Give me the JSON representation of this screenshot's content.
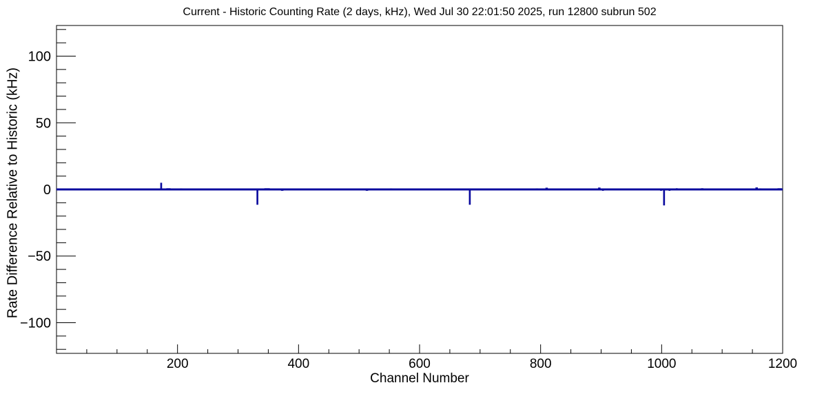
{
  "page": {
    "background": "#ffffff"
  },
  "chart_data": {
    "type": "line",
    "title": "Current - Historic Counting Rate (2 days, kHz), Wed Jul 30 22:01:50 2025, run 12800 subrun 502",
    "xlabel": "Channel Number",
    "ylabel": "Rate Difference Relative to Historic (kHz)",
    "xlim": [
      0,
      1200
    ],
    "ylim": [
      -123,
      123
    ],
    "x_major_ticks": [
      200,
      400,
      600,
      800,
      1000,
      1200
    ],
    "x_minor_tick_step": 50,
    "y_major_ticks": [
      -100,
      -50,
      0,
      50,
      100
    ],
    "y_minor_tick_step": 10,
    "grid": false,
    "legend_position": "none",
    "axis_color": "#000000",
    "line_color": "#0a0a9e",
    "baseline_value": 0,
    "series": [
      {
        "name": "rate_difference_vs_channel",
        "description": "Counting-rate difference is ~0 kHz across all channels, with narrow spikes listed below (value in kHz, width in channels)",
        "baseline": 0,
        "spikes": [
          {
            "channel": 87,
            "value": 0.7,
            "width": 4
          },
          {
            "channel": 156,
            "value": 0.7,
            "width": 4
          },
          {
            "channel": 173,
            "value": 5.0,
            "width": 3
          },
          {
            "channel": 185,
            "value": 0.9,
            "width": 7
          },
          {
            "channel": 196,
            "value": 0.6,
            "width": 4
          },
          {
            "channel": 206,
            "value": 0.8,
            "width": 4
          },
          {
            "channel": 223,
            "value": 0.6,
            "width": 4
          },
          {
            "channel": 231,
            "value": 0.7,
            "width": 4
          },
          {
            "channel": 265,
            "value": 0.6,
            "width": 4
          },
          {
            "channel": 332,
            "value": -11.5,
            "width": 3
          },
          {
            "channel": 348,
            "value": 0.9,
            "width": 9
          },
          {
            "channel": 373,
            "value": -0.6,
            "width": 4
          },
          {
            "channel": 513,
            "value": -0.8,
            "width": 4
          },
          {
            "channel": 553,
            "value": 0.8,
            "width": 4
          },
          {
            "channel": 604,
            "value": 0.5,
            "width": 3
          },
          {
            "channel": 683,
            "value": -11.5,
            "width": 3
          },
          {
            "channel": 794,
            "value": 0.8,
            "width": 4
          },
          {
            "channel": 810,
            "value": 1.3,
            "width": 4
          },
          {
            "channel": 897,
            "value": 1.4,
            "width": 4
          },
          {
            "channel": 903,
            "value": -0.8,
            "width": 3
          },
          {
            "channel": 999,
            "value": -1.0,
            "width": 3
          },
          {
            "channel": 1004,
            "value": -12.0,
            "width": 3
          },
          {
            "channel": 1013,
            "value": -1.0,
            "width": 3
          },
          {
            "channel": 1025,
            "value": 0.9,
            "width": 3
          },
          {
            "channel": 1067,
            "value": 0.9,
            "width": 4
          },
          {
            "channel": 1101,
            "value": 0.7,
            "width": 4
          },
          {
            "channel": 1126,
            "value": 0.5,
            "width": 3
          },
          {
            "channel": 1157,
            "value": 1.5,
            "width": 4
          },
          {
            "channel": 1163,
            "value": 0.8,
            "width": 4
          },
          {
            "channel": 1178,
            "value": 0.7,
            "width": 3
          },
          {
            "channel": 1185,
            "value": 0.7,
            "width": 3
          },
          {
            "channel": 1195,
            "value": 0.9,
            "width": 7
          }
        ]
      }
    ]
  }
}
